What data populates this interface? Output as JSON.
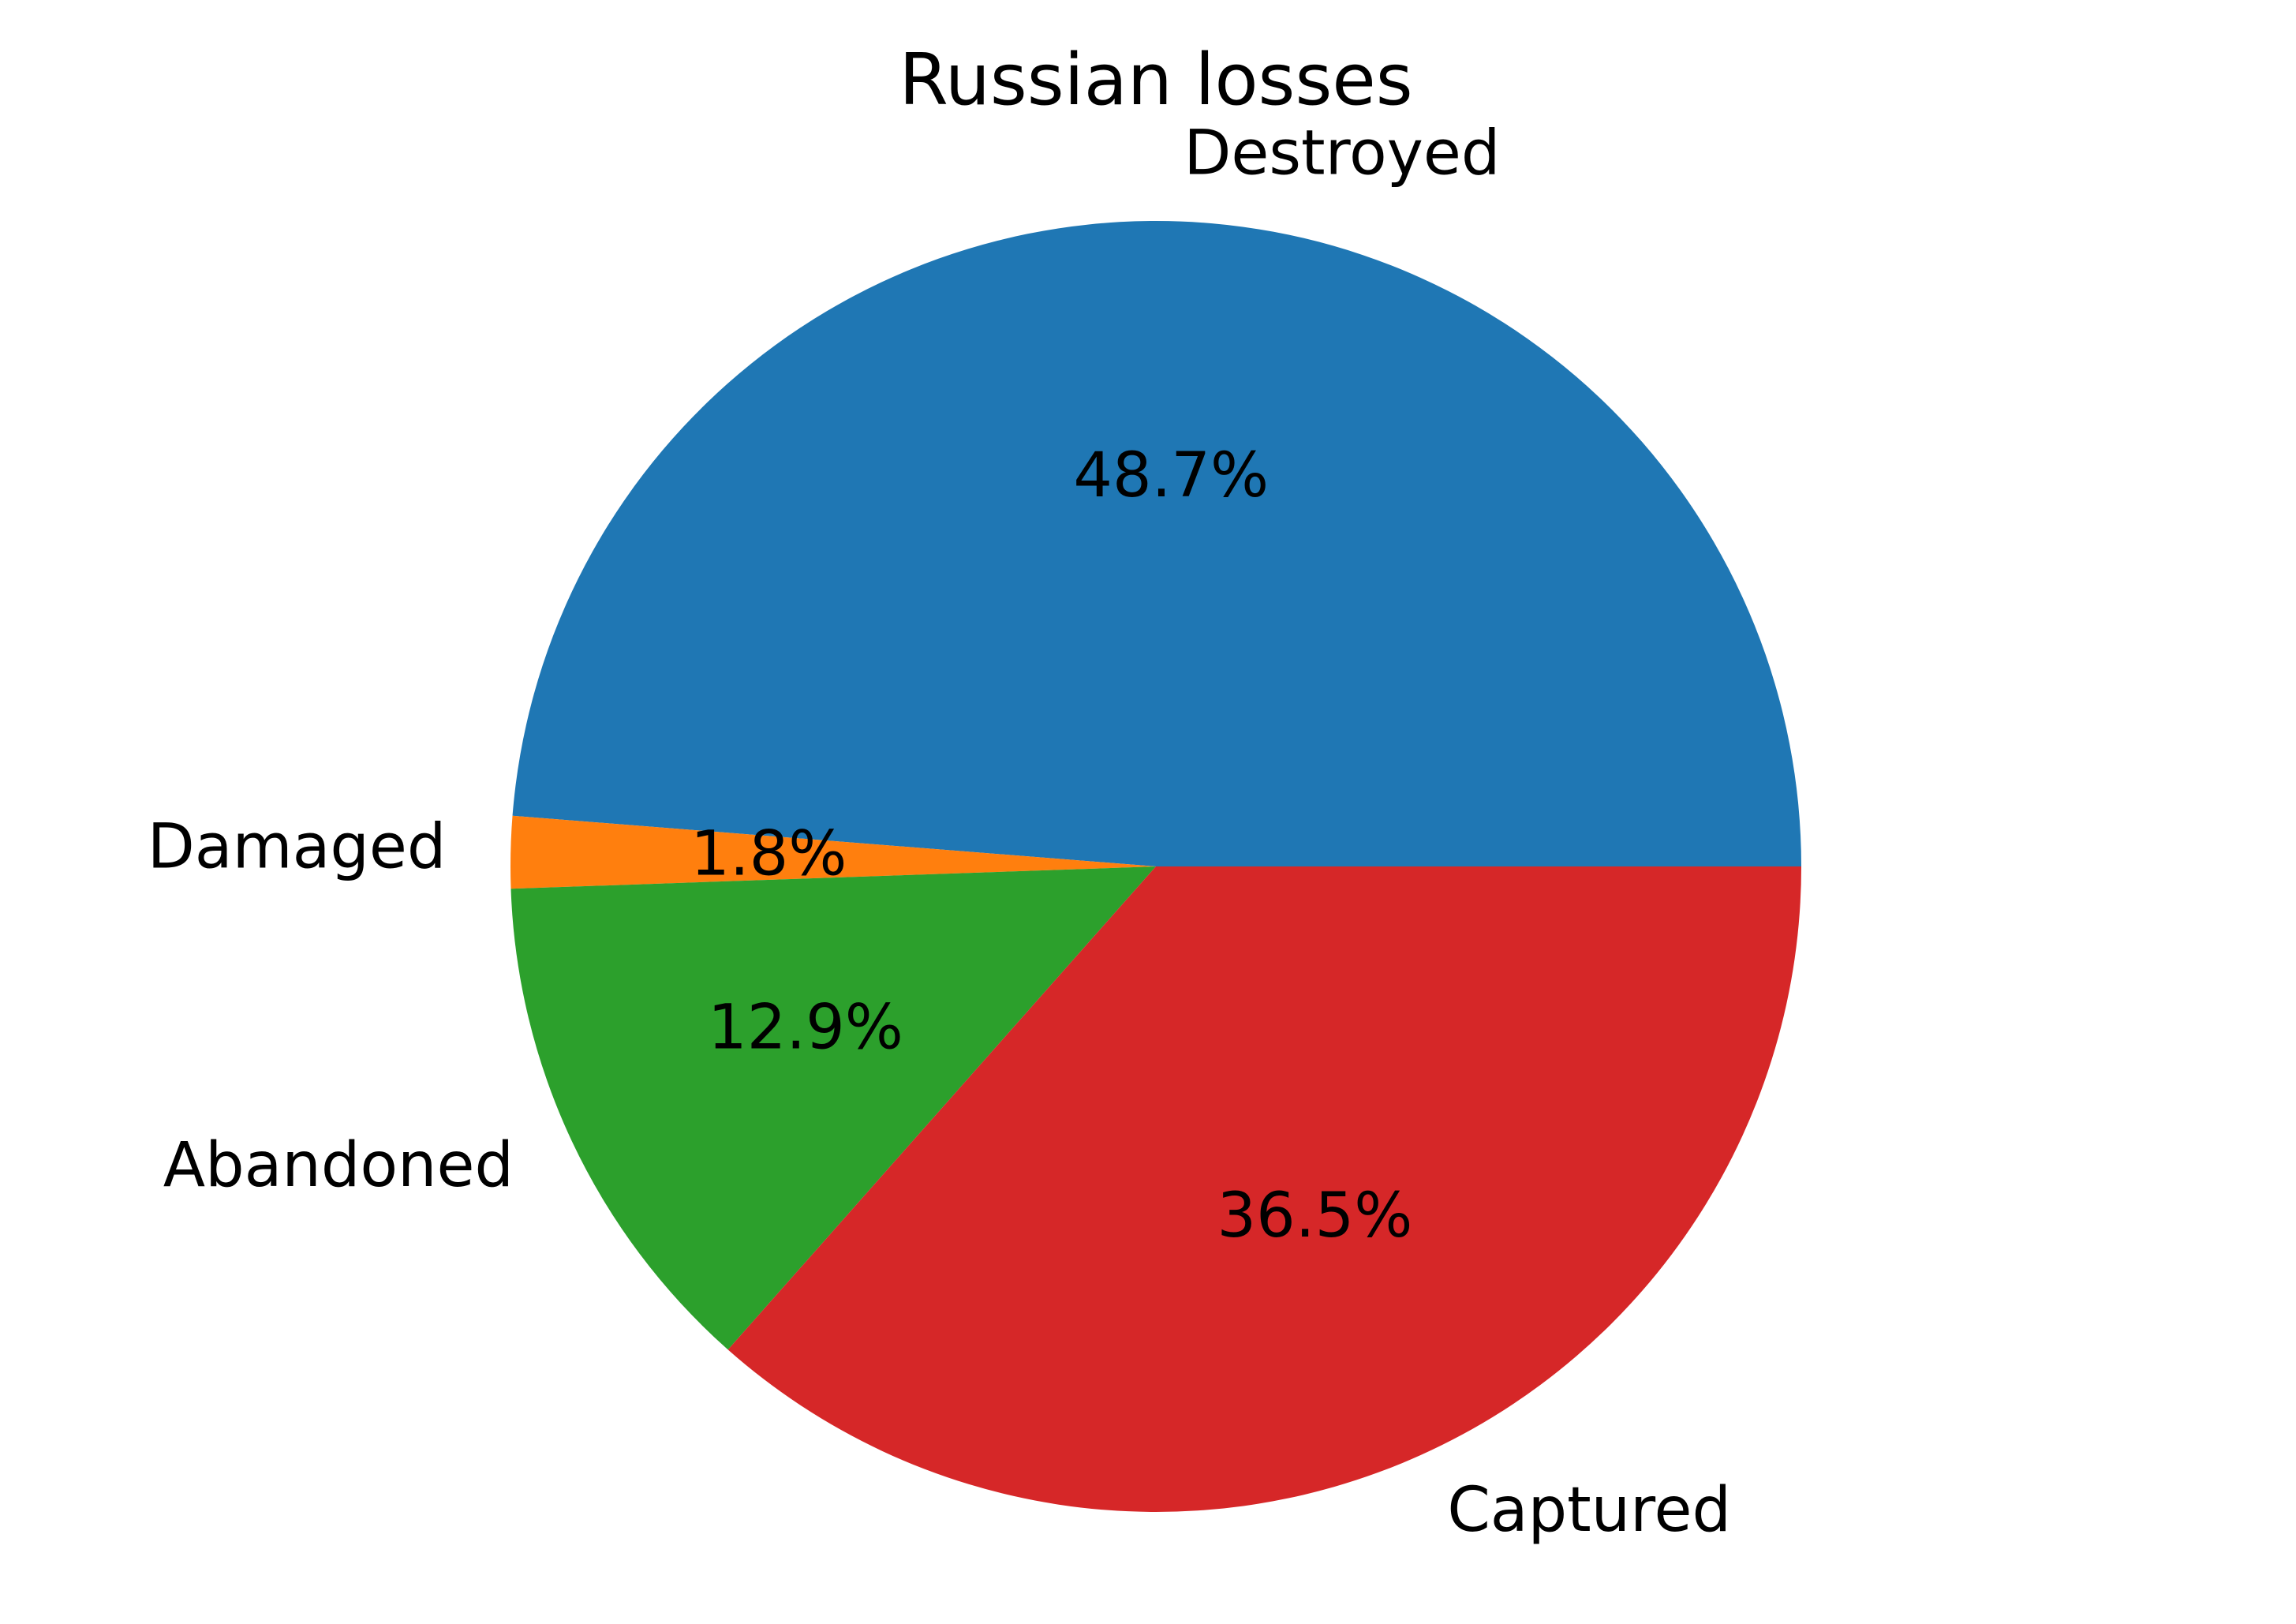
{
  "chart_data": {
    "type": "pie",
    "title": "Russian losses",
    "slices": [
      {
        "label": "Destroyed",
        "value": 48.7,
        "pct_label": "48.7%",
        "color": "#1f77b4"
      },
      {
        "label": "Damaged",
        "value": 1.8,
        "pct_label": "1.8%",
        "color": "#ff7f0e"
      },
      {
        "label": "Abandoned",
        "value": 12.9,
        "pct_label": "12.9%",
        "color": "#2ca02c"
      },
      {
        "label": "Captured",
        "value": 36.5,
        "pct_label": "36.5%",
        "color": "#d62728"
      }
    ],
    "start_angle_deg": 0,
    "direction": "counterclockwise",
    "legend": "none"
  }
}
